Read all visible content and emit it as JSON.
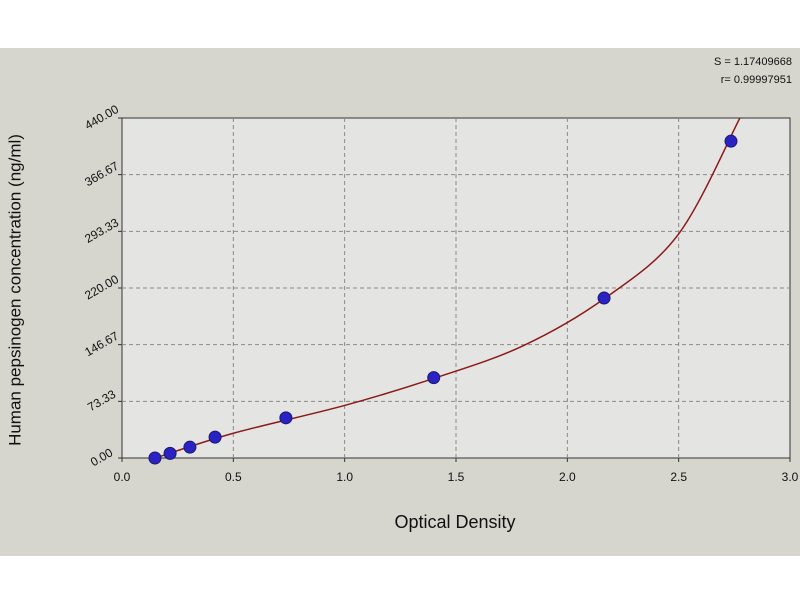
{
  "chart_data": {
    "type": "scatter",
    "x_label": "Optical Density",
    "y_label": "Human pepsinogen concentration (ng/ml)",
    "annotations": [
      "S = 1.17409668",
      "r= 0.99997951"
    ],
    "x": [
      0.148,
      0.216,
      0.305,
      0.418,
      0.736,
      1.4,
      2.165,
      2.735
    ],
    "values": [
      0,
      6,
      14,
      27,
      52,
      104,
      207,
      410
    ],
    "color": "#2a22c4",
    "fit": {
      "color": "#8b1a1a",
      "x": [
        0.15,
        0.5,
        1.0,
        1.4,
        1.8,
        2.17,
        2.5,
        2.775
      ],
      "values": [
        0,
        32,
        68,
        103,
        145,
        207,
        290,
        440
      ]
    },
    "xlim": [
      0,
      3
    ],
    "ylim": [
      0,
      440
    ],
    "xticks": [
      {
        "value": 0,
        "label": "0.0"
      },
      0.5,
      {
        "value": 1,
        "label": "1.0"
      },
      1.5,
      {
        "value": 2,
        "label": "2.0"
      },
      2.5,
      {
        "value": 3,
        "label": "3.0"
      }
    ],
    "yticks": [
      {
        "value": 0,
        "label": "0.00"
      },
      73.33,
      {
        "value": 146.67,
        "label": "146.67"
      },
      {
        "value": 220,
        "label": "220.00"
      },
      293.33,
      366.67,
      {
        "value": 440,
        "label": "440.00"
      }
    ],
    "grid": true
  }
}
